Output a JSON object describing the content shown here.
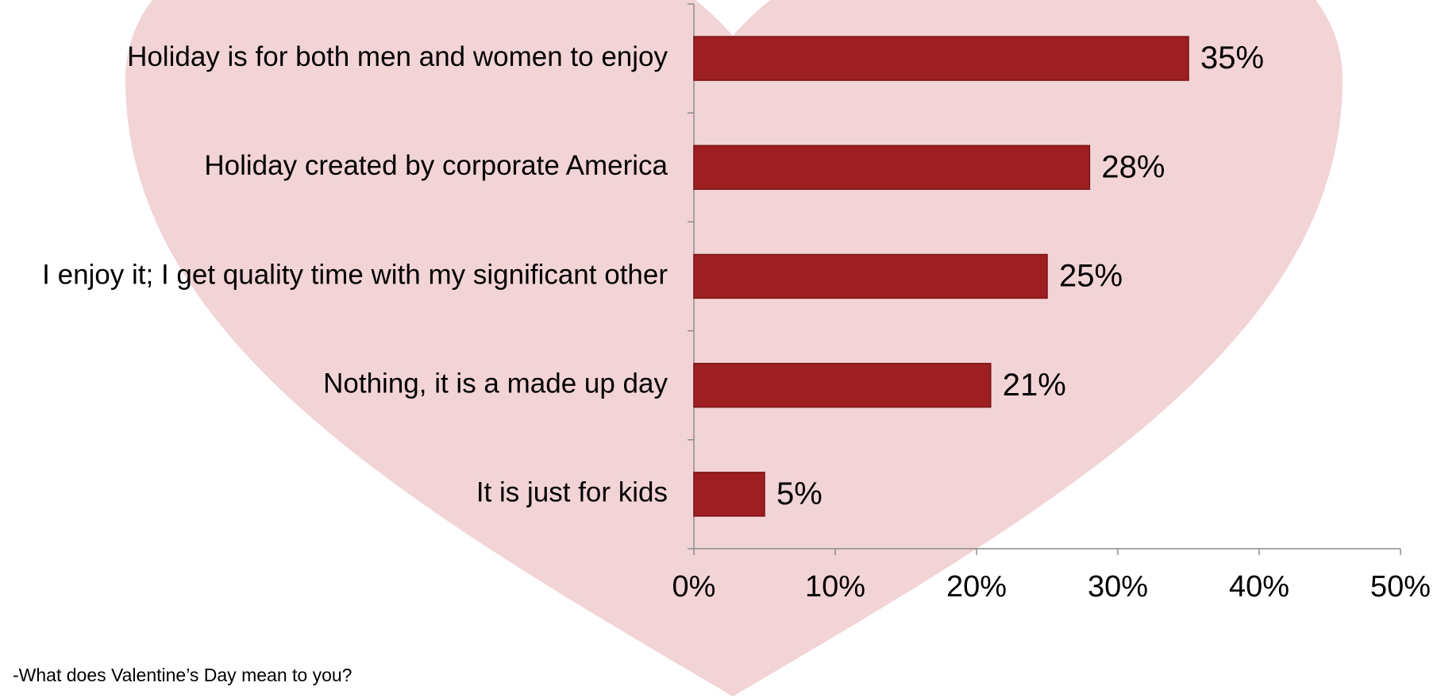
{
  "chart_data": {
    "type": "bar",
    "orientation": "horizontal",
    "categories": [
      "Holiday is for both men and women to enjoy",
      "Holiday created by corporate America",
      "I enjoy it; I get quality time with my significant other",
      "Nothing, it is a made up day",
      "It is just for kids"
    ],
    "values": [
      35,
      28,
      25,
      21,
      5
    ],
    "value_labels": [
      "35%",
      "28%",
      "25%",
      "21%",
      "5%"
    ],
    "color": "#9e1f22",
    "xlim": [
      0,
      50
    ],
    "xticks": [
      {
        "value": 0,
        "label": "0%"
      },
      {
        "value": 10,
        "label": "10%"
      },
      {
        "value": 20,
        "label": "20%"
      },
      {
        "value": 30,
        "label": "30%"
      },
      {
        "value": 40,
        "label": "40%"
      },
      {
        "value": 50,
        "label": "50%"
      }
    ],
    "caption": "-What does Valentine’s Day mean to you?"
  }
}
